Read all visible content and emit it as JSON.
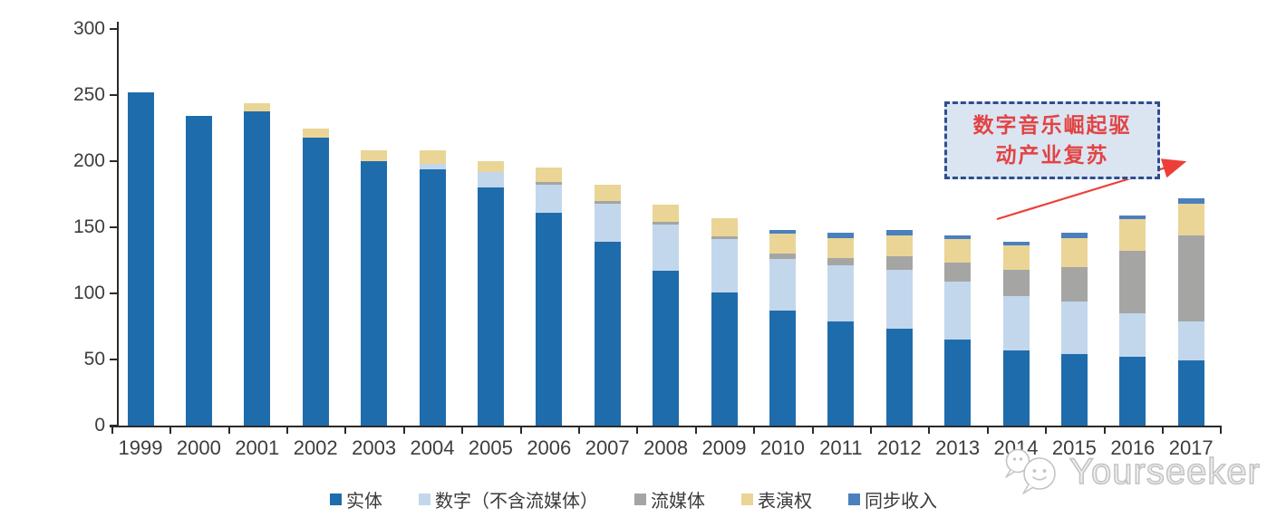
{
  "chart_data": {
    "type": "bar",
    "stacked": true,
    "title": "",
    "categories": [
      "1999",
      "2000",
      "2001",
      "2002",
      "2003",
      "2004",
      "2005",
      "2006",
      "2007",
      "2008",
      "2009",
      "2010",
      "2011",
      "2012",
      "2013",
      "2014",
      "2015",
      "2016",
      "2017"
    ],
    "series": [
      {
        "name": "实体",
        "color": "#1f6cad",
        "values": [
          252,
          234,
          238,
          218,
          200,
          194,
          180,
          161,
          139,
          117,
          101,
          87,
          79,
          73,
          65,
          57,
          54,
          52,
          49
        ]
      },
      {
        "name": "数字（不含流媒体）",
        "color": "#c2d7ec",
        "values": [
          0,
          0,
          0,
          0,
          0,
          4,
          12,
          21,
          29,
          35,
          40,
          39,
          42,
          45,
          44,
          41,
          40,
          33,
          30
        ]
      },
      {
        "name": "流媒体",
        "color": "#a5a5a3",
        "values": [
          0,
          0,
          0,
          0,
          0,
          0,
          0,
          2,
          2,
          2,
          2,
          4,
          6,
          10,
          14,
          20,
          26,
          47,
          65
        ]
      },
      {
        "name": "表演权",
        "color": "#ead596",
        "values": [
          0,
          0,
          6,
          7,
          8,
          10,
          8,
          11,
          12,
          13,
          14,
          15,
          15,
          16,
          18,
          18,
          22,
          24,
          24
        ]
      },
      {
        "name": "同步收入",
        "color": "#4a80bd",
        "values": [
          0,
          0,
          0,
          0,
          0,
          0,
          0,
          0,
          0,
          0,
          0,
          3,
          4,
          4,
          3,
          3,
          4,
          3,
          4
        ]
      }
    ],
    "ylim": [
      0,
      300
    ],
    "yticks": [
      0,
      50,
      100,
      150,
      200,
      250,
      300
    ],
    "grid": false,
    "legend_position": "bottom"
  },
  "annotation": {
    "line1": "数字音乐崛起驱",
    "line2": "动产业复苏",
    "text_color": "#e24343",
    "border_color": "#2e4e8e",
    "fill_color": "#dbe5f2",
    "arrow_color": "#ed3f38"
  },
  "watermark": {
    "text": "Yourseeker",
    "color": "#c3c3c3"
  }
}
